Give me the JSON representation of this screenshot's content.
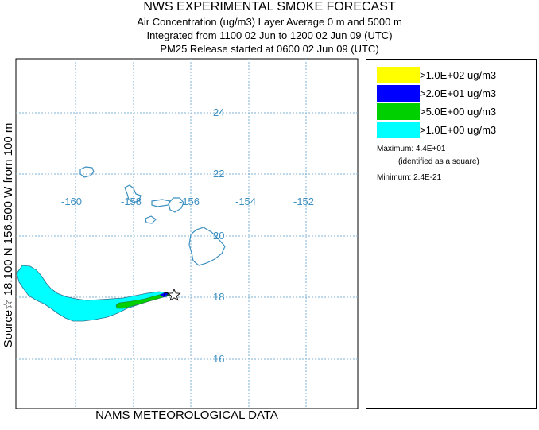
{
  "header": {
    "title": "NWS EXPERIMENTAL SMOKE FORECAST",
    "line2": "Air Concentration (ug/m3) Layer Average    0 m and  5000 m",
    "line3": "Integrated from 1100 02 Jun to 1200 02 Jun 09 (UTC)",
    "line4": "PM25 Release started at 0600 02 Jun 09 (UTC)"
  },
  "side_label": "Source☆ 18.100  N 156.500  W     from  100 m",
  "footer": "NAMS METEOROLOGICAL DATA",
  "map": {
    "lon_labels": [
      "-160",
      "-158",
      "-156",
      "-154",
      "-152"
    ],
    "lat_labels": [
      "24",
      "22",
      "20",
      "18",
      "16"
    ],
    "source_marker": "source-star",
    "max_marker": "max-square",
    "colors": {
      "grid": "#7fb2d6",
      "coast": "#3b8fc0",
      "plume_low": "#00ffff",
      "plume_mid": "#00d000",
      "plume_high": "#0000ff",
      "plume_top": "#ffff00"
    }
  },
  "legend": {
    "items": [
      {
        "label": ">1.0E+02 ug/m3",
        "color": "#ffff00"
      },
      {
        "label": ">2.0E+01 ug/m3",
        "color": "#0000ff"
      },
      {
        "label": ">5.0E+00 ug/m3",
        "color": "#00d000"
      },
      {
        "label": ">1.0E+00 ug/m3",
        "color": "#00ffff"
      }
    ],
    "maximum_label": "Maximum:",
    "maximum_value": "4.4E+01",
    "maximum_note": "(identified as a square)",
    "minimum_label": "Minimum:",
    "minimum_value": "2.4E-21"
  }
}
